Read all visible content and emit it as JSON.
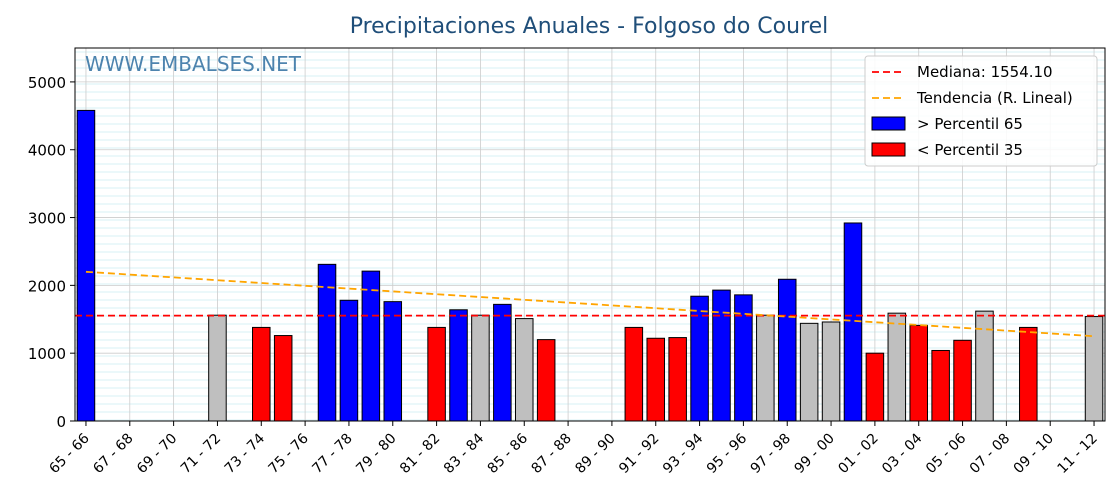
{
  "watermark": "WWW.EMBALSES.NET",
  "colors": {
    "above": "#0000ff",
    "below": "#ff0000",
    "normal": "#bfbfbf",
    "median_line": "#ff0000",
    "trend_line": "#ffa500",
    "title": "#1f4e79"
  },
  "chart_data": {
    "type": "bar",
    "title": "Precipitaciones Anuales - Folgoso do Courel",
    "xlabel": "",
    "ylabel": "",
    "ylim": [
      0,
      5500
    ],
    "yticks": [
      0,
      1000,
      2000,
      3000,
      4000,
      5000
    ],
    "categories": [
      "65 - 66",
      "66 - 67",
      "67 - 68",
      "68 - 69",
      "69 - 70",
      "70 - 71",
      "71 - 72",
      "72 - 73",
      "73 - 74",
      "74 - 75",
      "75 - 76",
      "76 - 77",
      "77 - 78",
      "78 - 79",
      "79 - 80",
      "80 - 81",
      "81 - 82",
      "82 - 83",
      "83 - 84",
      "84 - 85",
      "85 - 86",
      "86 - 87",
      "87 - 88",
      "88 - 89",
      "89 - 90",
      "90 - 91",
      "91 - 92",
      "92 - 93",
      "93 - 94",
      "94 - 95",
      "95 - 96",
      "96 - 97",
      "97 - 98",
      "98 - 99",
      "99 - 00",
      "00 - 01",
      "01 - 02",
      "02 - 03",
      "03 - 04",
      "04 - 05",
      "05 - 06",
      "06 - 07",
      "07 - 08",
      "08 - 09",
      "09 - 10",
      "10 - 11",
      "11 - 12"
    ],
    "xtick_labels": [
      "65 - 66",
      "67 - 68",
      "69 - 70",
      "71 - 72",
      "73 - 74",
      "75 - 76",
      "77 - 78",
      "79 - 80",
      "81 - 82",
      "83 - 84",
      "85 - 86",
      "87 - 88",
      "89 - 90",
      "91 - 92",
      "93 - 94",
      "95 - 96",
      "97 - 98",
      "99 - 00",
      "01 - 02",
      "03 - 04",
      "05 - 06",
      "07 - 08",
      "09 - 10",
      "11 - 12"
    ],
    "values": [
      4580,
      0,
      0,
      0,
      0,
      0,
      1560,
      0,
      1380,
      1260,
      0,
      2310,
      1780,
      2210,
      1760,
      0,
      1380,
      1640,
      1560,
      1720,
      1510,
      1200,
      0,
      0,
      0,
      1380,
      1220,
      1230,
      1840,
      1930,
      1860,
      1560,
      2090,
      1440,
      1460,
      2920,
      1000,
      1590,
      1410,
      1040,
      1190,
      1620,
      0,
      1380,
      0,
      0,
      1540
    ],
    "classes": [
      "above",
      "none",
      "none",
      "none",
      "none",
      "none",
      "normal",
      "none",
      "below",
      "below",
      "none",
      "above",
      "above",
      "above",
      "above",
      "none",
      "below",
      "above",
      "normal",
      "above",
      "normal",
      "below",
      "none",
      "none",
      "none",
      "below",
      "below",
      "below",
      "above",
      "above",
      "above",
      "normal",
      "above",
      "normal",
      "normal",
      "above",
      "below",
      "normal",
      "below",
      "below",
      "below",
      "normal",
      "none",
      "below",
      "none",
      "none",
      "normal"
    ],
    "median": 1554.1,
    "trend": {
      "start_value": 2200,
      "end_value": 1250
    },
    "grid": true,
    "legend_position": "top-right",
    "legend": [
      {
        "type": "line",
        "style": "dashed",
        "color": "#ff0000",
        "label": "Mediana: 1554.10"
      },
      {
        "type": "line",
        "style": "dashed",
        "color": "#ffa500",
        "label": "Tendencia (R. Lineal)"
      },
      {
        "type": "patch",
        "color": "#0000ff",
        "label": " > Percentil 65"
      },
      {
        "type": "patch",
        "color": "#ff0000",
        "label": " < Percentil 35"
      }
    ]
  }
}
